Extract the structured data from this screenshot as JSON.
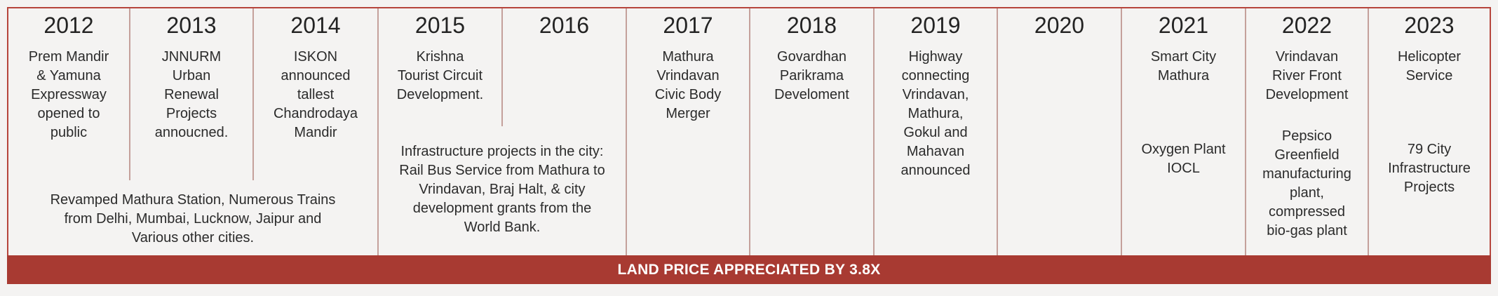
{
  "years": [
    "2012",
    "2013",
    "2014",
    "2015",
    "2016",
    "2017",
    "2018",
    "2019",
    "2020",
    "2021",
    "2022",
    "2023"
  ],
  "events": {
    "y2012": "Prem Mandir\n& Yamuna\nExpressway\nopened to\npublic",
    "y2013": "JNNURM\nUrban\nRenewal\nProjects\nannoucned.",
    "y2014": "ISKON\nannounced\ntallest\nChandrodaya\nMandir",
    "y2015": "Krishna\nTourist Circuit\nDevelopment.",
    "y2017": "Mathura\nVrindavan\nCivic Body\nMerger",
    "y2018": "Govardhan\nParikrama\nDeveloment",
    "y2019": "Highway\nconnecting\nVrindavan,\nMathura,\nGokul and\nMahavan\nannounced",
    "y2021a": "Smart City\nMathura",
    "y2021b": "Oxygen Plant\nIOCL",
    "y2022a": "Vrindavan\nRiver Front\nDevelopment",
    "y2022b": "Pepsico\nGreenfield\nmanufacturing\nplant,\ncompressed\nbio-gas plant",
    "y2023a": "Helicopter\nService",
    "y2023b": "79 City\nInfrastructure\nProjects",
    "span_2012_2014": "Revamped Mathura Station, Numerous Trains\nfrom Delhi, Mumbai, Lucknow, Jaipur and\nVarious other cities.",
    "span_2015_2016": "Infrastructure projects in the city:\nRail Bus Service from Mathura to\nVrindavan, Braj Halt, & city\ndevelopment grants from the\nWorld Bank."
  },
  "footer_banner": "LAND PRICE APPRECIATED BY 3.8X",
  "colors": {
    "accent": "#a83a32",
    "divider": "#c4a09b",
    "background": "#f4f3f2"
  }
}
